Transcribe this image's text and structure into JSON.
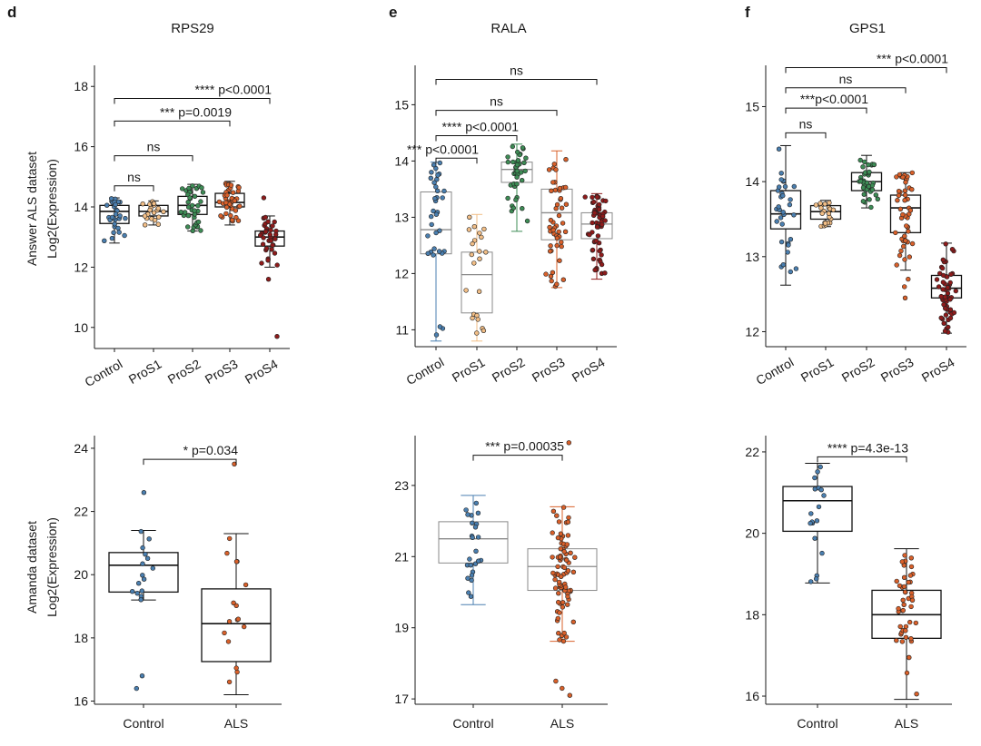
{
  "colors": {
    "Control": "#4a7fb0",
    "ProS1": "#f2be86",
    "ProS2": "#3d8c55",
    "ProS3": "#d9602a",
    "ProS4": "#8e1b1b",
    "ALS": "#d9602a",
    "axis": "#1a1a1a",
    "box_thin": "#8a8a8a"
  },
  "panel_letters": [
    "d",
    "e",
    "f"
  ],
  "row_labels": [
    {
      "line1": "Answer ALS dataset",
      "line2": "Log2(Expression)"
    },
    {
      "line1": "Amanda dataset",
      "line2": "Log2(Expression)"
    }
  ],
  "chart_data": [
    {
      "id": "rps29_answer",
      "type": "box",
      "title": "RPS29",
      "panel_letter": "d",
      "ylabel": "Answer ALS dataset / Log2(Expression)",
      "ylim": [
        9.3,
        18.7
      ],
      "yticks": [
        10,
        12,
        14,
        16,
        18
      ],
      "categories": [
        "Control",
        "ProS1",
        "ProS2",
        "ProS3",
        "ProS4"
      ],
      "boxes": [
        {
          "q1": 13.45,
          "median": 13.85,
          "q3": 14.05,
          "whisker_low": 12.8,
          "whisker_high": 14.3,
          "n": 30
        },
        {
          "q1": 13.7,
          "median": 13.85,
          "q3": 14.05,
          "whisker_low": 13.4,
          "whisker_high": 14.2,
          "n": 22
        },
        {
          "q1": 13.75,
          "median": 14.05,
          "q3": 14.35,
          "whisker_low": 13.2,
          "whisker_high": 14.75,
          "n": 40
        },
        {
          "q1": 14.0,
          "median": 14.15,
          "q3": 14.45,
          "whisker_low": 13.4,
          "whisker_high": 14.85,
          "n": 45
        },
        {
          "q1": 12.7,
          "median": 13.0,
          "q3": 13.2,
          "whisker_low": 12.0,
          "whisker_high": 13.7,
          "n": 35
        }
      ],
      "outliers": [
        [],
        [],
        [],
        [],
        [
          14.3,
          11.6,
          9.7
        ]
      ],
      "annotations": [
        {
          "from": "Control",
          "to": "ProS1",
          "y": 14.7,
          "label": "ns",
          "label_pos": "center"
        },
        {
          "from": "Control",
          "to": "ProS2",
          "y": 15.7,
          "label": "ns",
          "label_pos": "center"
        },
        {
          "from": "Control",
          "to": "ProS3",
          "y": 16.85,
          "label": "*** p=0.0019",
          "label_pos": "right"
        },
        {
          "from": "Control",
          "to": "ProS4",
          "y": 17.6,
          "label": "**** p<0.0001",
          "label_pos": "right"
        }
      ]
    },
    {
      "id": "rala_answer",
      "type": "box",
      "title": "RALA",
      "panel_letter": "e",
      "ylim": [
        10.7,
        15.7
      ],
      "yticks": [
        11,
        12,
        13,
        14,
        15
      ],
      "categories": [
        "Control",
        "ProS1",
        "ProS2",
        "ProS3",
        "ProS4"
      ],
      "boxes": [
        {
          "q1": 12.35,
          "median": 12.78,
          "q3": 13.45,
          "whisker_low": 10.8,
          "whisker_high": 13.98,
          "n": 34
        },
        {
          "q1": 11.3,
          "median": 11.98,
          "q3": 12.38,
          "whisker_low": 10.8,
          "whisker_high": 13.05,
          "n": 22
        },
        {
          "q1": 13.62,
          "median": 13.85,
          "q3": 13.98,
          "whisker_low": 12.75,
          "whisker_high": 14.3,
          "n": 40
        },
        {
          "q1": 12.6,
          "median": 13.08,
          "q3": 13.5,
          "whisker_low": 11.75,
          "whisker_high": 14.18,
          "n": 48
        },
        {
          "q1": 12.62,
          "median": 12.88,
          "q3": 13.08,
          "whisker_low": 11.9,
          "whisker_high": 13.42,
          "n": 60
        }
      ],
      "outliers": [
        [],
        [],
        [],
        [],
        []
      ],
      "annotations": [
        {
          "from": "Control",
          "to": "ProS1",
          "y": 14.05,
          "label": "*** p<0.0001",
          "label_pos": "right"
        },
        {
          "from": "Control",
          "to": "ProS2",
          "y": 14.45,
          "label": "**** p<0.0001",
          "label_pos": "right"
        },
        {
          "from": "Control",
          "to": "ProS3",
          "y": 14.9,
          "label": "ns",
          "label_pos": "center"
        },
        {
          "from": "Control",
          "to": "ProS4",
          "y": 15.45,
          "label": "ns",
          "label_pos": "center"
        }
      ]
    },
    {
      "id": "gps1_answer",
      "type": "box",
      "title": "GPS1",
      "panel_letter": "f",
      "ylim": [
        11.8,
        15.55
      ],
      "yticks": [
        12,
        13,
        14,
        15
      ],
      "categories": [
        "Control",
        "ProS1",
        "ProS2",
        "ProS3",
        "ProS4"
      ],
      "boxes": [
        {
          "q1": 13.37,
          "median": 13.57,
          "q3": 13.88,
          "whisker_low": 12.62,
          "whisker_high": 14.48,
          "n": 32
        },
        {
          "q1": 13.5,
          "median": 13.6,
          "q3": 13.68,
          "whisker_low": 13.4,
          "whisker_high": 13.75,
          "n": 22
        },
        {
          "q1": 13.88,
          "median": 14.0,
          "q3": 14.12,
          "whisker_low": 13.65,
          "whisker_high": 14.35,
          "n": 40
        },
        {
          "q1": 13.32,
          "median": 13.65,
          "q3": 13.82,
          "whisker_low": 12.82,
          "whisker_high": 14.12,
          "n": 48
        },
        {
          "q1": 12.45,
          "median": 12.58,
          "q3": 12.75,
          "whisker_low": 11.98,
          "whisker_high": 13.18,
          "n": 60
        }
      ],
      "outliers": [
        [],
        [],
        [],
        [
          12.45,
          12.6,
          12.7
        ],
        []
      ],
      "annotations": [
        {
          "from": "Control",
          "to": "ProS1",
          "y": 14.65,
          "label": "ns",
          "label_pos": "center"
        },
        {
          "from": "Control",
          "to": "ProS2",
          "y": 14.98,
          "label": "***p<0.0001",
          "label_pos": "right"
        },
        {
          "from": "Control",
          "to": "ProS3",
          "y": 15.25,
          "label": "ns",
          "label_pos": "center"
        },
        {
          "from": "Control",
          "to": "ProS4",
          "y": 15.52,
          "label": "*** p<0.0001",
          "label_pos": "right"
        }
      ]
    },
    {
      "id": "rps29_amanda",
      "type": "box",
      "ylabel": "Amanda dataset / Log2(Expression)",
      "ylim": [
        15.9,
        24.4
      ],
      "yticks": [
        16,
        18,
        20,
        22,
        24
      ],
      "categories": [
        "Control",
        "ALS"
      ],
      "boxes": [
        {
          "q1": 19.45,
          "median": 20.3,
          "q3": 20.7,
          "whisker_low": 19.2,
          "whisker_high": 21.4,
          "n": 16
        },
        {
          "q1": 17.25,
          "median": 18.45,
          "q3": 19.55,
          "whisker_low": 16.2,
          "whisker_high": 21.3,
          "n": 16
        }
      ],
      "outliers": [
        [
          22.6,
          16.8,
          16.4
        ],
        [
          23.5
        ]
      ],
      "annotations": [
        {
          "from": "Control",
          "to": "ALS",
          "y": 23.65,
          "label": "* p=0.034",
          "label_pos": "right"
        }
      ]
    },
    {
      "id": "rala_amanda",
      "type": "box",
      "ylim": [
        16.85,
        24.4
      ],
      "yticks": [
        17,
        19,
        21,
        23
      ],
      "categories": [
        "Control",
        "ALS"
      ],
      "boxes": [
        {
          "q1": 20.82,
          "median": 21.5,
          "q3": 21.98,
          "whisker_low": 19.65,
          "whisker_high": 22.72,
          "n": 24
        },
        {
          "q1": 20.05,
          "median": 20.72,
          "q3": 21.22,
          "whisker_low": 18.62,
          "whisker_high": 22.4,
          "n": 80
        }
      ],
      "outliers": [
        [],
        [
          24.2,
          17.5,
          17.3,
          17.1
        ]
      ],
      "annotations": [
        {
          "from": "Control",
          "to": "ALS",
          "y": 23.85,
          "label": "*** p=0.00035",
          "label_pos": "right"
        }
      ]
    },
    {
      "id": "gps1_amanda",
      "type": "box",
      "ylim": [
        15.8,
        22.4
      ],
      "yticks": [
        16,
        18,
        20,
        22
      ],
      "categories": [
        "Control",
        "ALS"
      ],
      "boxes": [
        {
          "q1": 20.05,
          "median": 20.8,
          "q3": 21.15,
          "whisker_low": 18.78,
          "whisker_high": 21.72,
          "n": 18
        },
        {
          "q1": 17.42,
          "median": 18.0,
          "q3": 18.6,
          "whisker_low": 15.92,
          "whisker_high": 19.62,
          "n": 45
        }
      ],
      "outliers": [
        [],
        []
      ],
      "annotations": [
        {
          "from": "Control",
          "to": "ALS",
          "y": 21.88,
          "label": "**** p=4.3e-13",
          "label_pos": "right"
        }
      ]
    }
  ]
}
